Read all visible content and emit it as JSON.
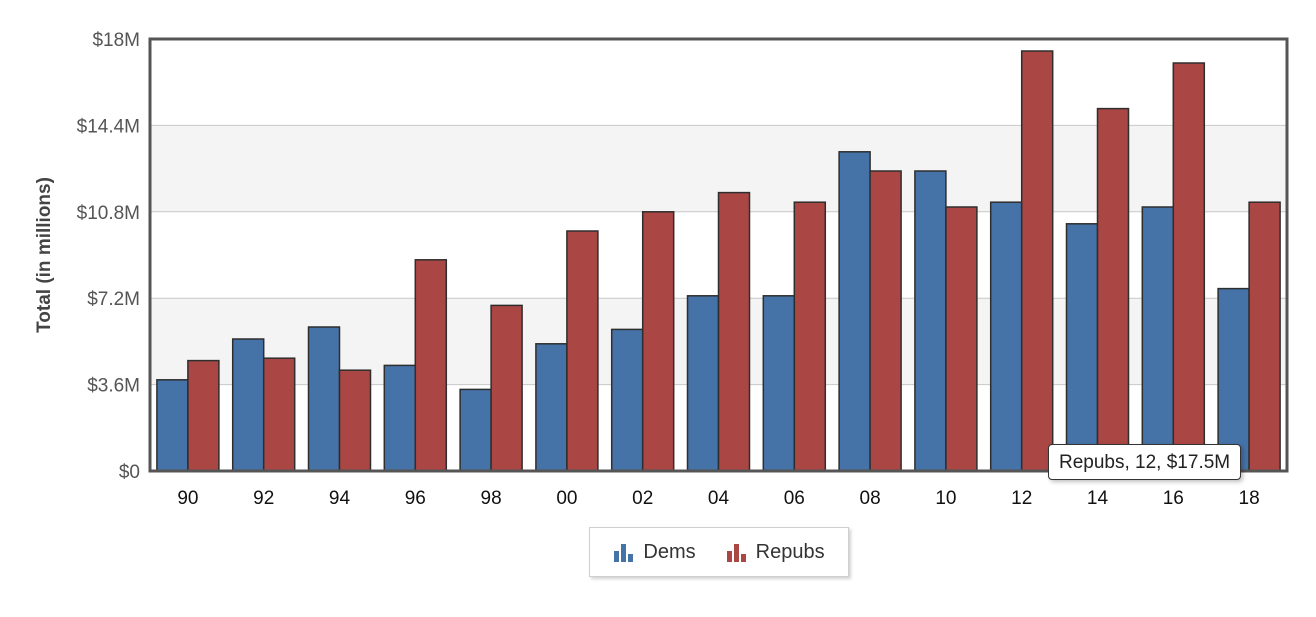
{
  "chart_data": {
    "type": "bar",
    "title": "",
    "xlabel": "",
    "ylabel": "Total (in millions)",
    "categories": [
      "90",
      "92",
      "94",
      "96",
      "98",
      "00",
      "02",
      "04",
      "06",
      "08",
      "10",
      "12",
      "14",
      "16",
      "18"
    ],
    "series": [
      {
        "name": "Dems",
        "color": "#4572a7",
        "values": [
          3.8,
          5.5,
          6.0,
          4.4,
          3.4,
          5.3,
          5.9,
          7.3,
          7.3,
          13.3,
          12.5,
          11.2,
          10.3,
          11.0,
          7.6
        ]
      },
      {
        "name": "Repubs",
        "color": "#aa4643",
        "values": [
          4.6,
          4.7,
          4.2,
          8.8,
          6.9,
          10.0,
          10.8,
          11.6,
          11.2,
          12.5,
          11.0,
          17.5,
          15.1,
          17.0,
          11.2
        ]
      }
    ],
    "ylim": [
      0,
      18
    ],
    "yticks": [
      "$0",
      "$3.6M",
      "$7.2M",
      "$10.8M",
      "$14.4M",
      "$18M"
    ],
    "grid": true,
    "legend_position": "bottom-center"
  },
  "legend": {
    "items": [
      {
        "label": "Dems"
      },
      {
        "label": "Repubs"
      }
    ]
  },
  "tooltip": {
    "text": "Repubs, 12, $17.5M"
  }
}
